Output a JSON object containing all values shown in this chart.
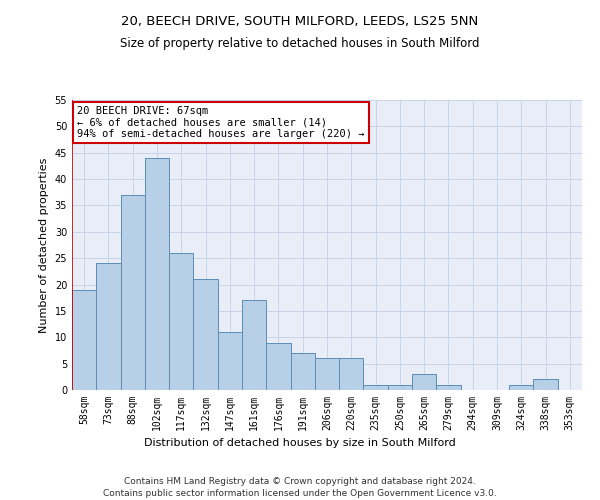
{
  "title_line1": "20, BEECH DRIVE, SOUTH MILFORD, LEEDS, LS25 5NN",
  "title_line2": "Size of property relative to detached houses in South Milford",
  "xlabel": "Distribution of detached houses by size in South Milford",
  "ylabel": "Number of detached properties",
  "categories": [
    "58sqm",
    "73sqm",
    "88sqm",
    "102sqm",
    "117sqm",
    "132sqm",
    "147sqm",
    "161sqm",
    "176sqm",
    "191sqm",
    "206sqm",
    "220sqm",
    "235sqm",
    "250sqm",
    "265sqm",
    "279sqm",
    "294sqm",
    "309sqm",
    "324sqm",
    "338sqm",
    "353sqm"
  ],
  "values": [
    19,
    24,
    37,
    44,
    26,
    21,
    11,
    17,
    9,
    7,
    6,
    6,
    1,
    1,
    3,
    1,
    0,
    0,
    1,
    2,
    0
  ],
  "bar_color": "#b8cfe8",
  "bar_edge_color": "#5b8db8",
  "highlight_color": "#cc0000",
  "annotation_text": "20 BEECH DRIVE: 67sqm\n← 6% of detached houses are smaller (14)\n94% of semi-detached houses are larger (220) →",
  "annotation_box_color": "#ffffff",
  "annotation_box_edge_color": "#cc0000",
  "ylim": [
    0,
    55
  ],
  "yticks": [
    0,
    5,
    10,
    15,
    20,
    25,
    30,
    35,
    40,
    45,
    50,
    55
  ],
  "footer_line1": "Contains HM Land Registry data © Crown copyright and database right 2024.",
  "footer_line2": "Contains public sector information licensed under the Open Government Licence v3.0.",
  "title_fontsize": 9.5,
  "subtitle_fontsize": 8.5,
  "axis_label_fontsize": 8,
  "tick_fontsize": 7,
  "footer_fontsize": 6.5,
  "annotation_fontsize": 7.5,
  "background_color": "#ffffff",
  "grid_color": "#c8d4e8",
  "plot_bg_color": "#e8edf8"
}
